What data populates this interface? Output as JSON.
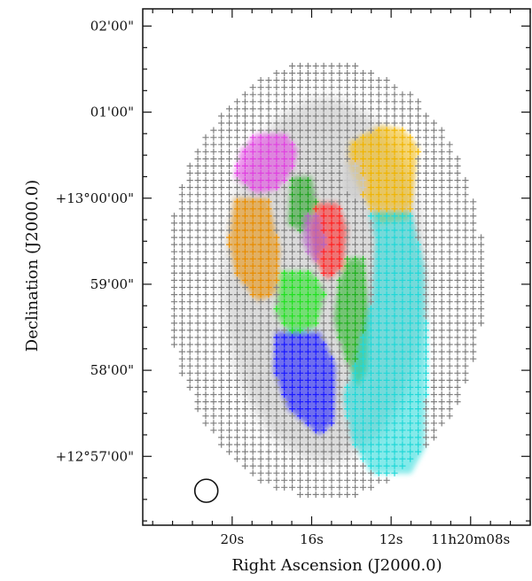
{
  "chart_data": {
    "type": "scatter",
    "xlabel": "Right Ascension (J2000.0)",
    "ylabel": "Declination (J2000.0)",
    "x_ticks": [
      {
        "value": 20,
        "label": "20s"
      },
      {
        "value": 16,
        "label": "16s"
      },
      {
        "value": 12,
        "label": "12s"
      },
      {
        "value": 8,
        "label": "11h20m08s"
      }
    ],
    "y_ticks": [
      {
        "value": 2,
        "label": "02'00\""
      },
      {
        "value": 1,
        "label": "01'00\""
      },
      {
        "value": 0,
        "label": "+13°00'00\""
      },
      {
        "value": -1,
        "label": "59'00\""
      },
      {
        "value": -2,
        "label": "58'00\""
      },
      {
        "value": -3,
        "label": "+12°57'00\""
      }
    ],
    "xlim": [
      24.5,
      5.0
    ],
    "ylim": [
      -3.8,
      2.2
    ],
    "grid": false,
    "beam_marker": {
      "ra_s": 21.3,
      "dec_arcmin": -3.4
    },
    "background_grid": {
      "color": "#808080",
      "ra_step_s": 0.396,
      "dec_step_arcmin": 0.083
    },
    "series": [
      {
        "color": "#e040e0",
        "polygon": [
          [
            18.8,
            0.75
          ],
          [
            17.3,
            0.75
          ],
          [
            16.7,
            0.55
          ],
          [
            17.0,
            0.3
          ],
          [
            17.8,
            0.1
          ],
          [
            18.8,
            0.05
          ],
          [
            19.9,
            0.25
          ],
          [
            19.6,
            0.55
          ]
        ]
      },
      {
        "color": "#f0b400",
        "polygon": [
          [
            14.1,
            0.65
          ],
          [
            12.5,
            0.85
          ],
          [
            11.4,
            0.8
          ],
          [
            10.6,
            0.6
          ],
          [
            10.8,
            0.2
          ],
          [
            11.1,
            -0.25
          ],
          [
            12.6,
            -0.3
          ],
          [
            13.6,
            0.1
          ],
          [
            14.2,
            0.4
          ]
        ]
      },
      {
        "color": "#c8c8c8",
        "polygon": [
          [
            14.3,
            0.45
          ],
          [
            13.5,
            0.4
          ],
          [
            13.3,
            0.1
          ],
          [
            13.7,
            -0.05
          ],
          [
            14.4,
            0.1
          ]
        ]
      },
      {
        "color": "#e88c00",
        "polygon": [
          [
            19.9,
            0.0
          ],
          [
            18.2,
            0.0
          ],
          [
            17.6,
            -0.6
          ],
          [
            17.8,
            -1.1
          ],
          [
            18.7,
            -1.2
          ],
          [
            19.8,
            -0.9
          ],
          [
            20.2,
            -0.5
          ]
        ]
      },
      {
        "color": "#20a020",
        "polygon": [
          [
            17.0,
            0.25
          ],
          [
            16.0,
            0.25
          ],
          [
            15.7,
            -0.1
          ],
          [
            16.4,
            -0.4
          ],
          [
            17.2,
            -0.3
          ]
        ]
      },
      {
        "color": "#ff2020",
        "polygon": [
          [
            15.7,
            -0.05
          ],
          [
            14.7,
            -0.05
          ],
          [
            14.2,
            -0.35
          ],
          [
            14.4,
            -0.8
          ],
          [
            15.2,
            -0.95
          ],
          [
            15.9,
            -0.7
          ],
          [
            16.1,
            -0.35
          ]
        ]
      },
      {
        "color": "#20e020",
        "polygon": [
          [
            17.6,
            -0.85
          ],
          [
            16.0,
            -0.85
          ],
          [
            15.3,
            -1.1
          ],
          [
            15.8,
            -1.5
          ],
          [
            17.0,
            -1.6
          ],
          [
            17.8,
            -1.35
          ]
        ]
      },
      {
        "color": "#20b020",
        "polygon": [
          [
            14.2,
            -0.7
          ],
          [
            13.4,
            -0.7
          ],
          [
            13.1,
            -1.3
          ],
          [
            13.2,
            -2.0
          ],
          [
            13.7,
            -2.2
          ],
          [
            14.4,
            -1.8
          ],
          [
            14.9,
            -1.4
          ],
          [
            14.6,
            -0.95
          ]
        ]
      },
      {
        "color": "#b060c0",
        "polygon": [
          [
            16.4,
            -0.2
          ],
          [
            15.6,
            -0.2
          ],
          [
            15.3,
            -0.55
          ],
          [
            15.9,
            -0.75
          ],
          [
            16.5,
            -0.5
          ]
        ]
      },
      {
        "color": "#1a1aff",
        "polygon": [
          [
            17.8,
            -1.55
          ],
          [
            15.6,
            -1.55
          ],
          [
            14.8,
            -1.95
          ],
          [
            14.9,
            -2.6
          ],
          [
            15.6,
            -2.75
          ],
          [
            17.2,
            -2.45
          ],
          [
            17.9,
            -2.0
          ]
        ]
      },
      {
        "color": "#20d8d8",
        "polygon": [
          [
            13.1,
            -0.15
          ],
          [
            11.0,
            -0.15
          ],
          [
            10.3,
            -0.8
          ],
          [
            10.2,
            -1.9
          ],
          [
            10.3,
            -2.9
          ],
          [
            11.0,
            -3.2
          ],
          [
            13.0,
            -3.2
          ],
          [
            14.0,
            -2.8
          ],
          [
            14.4,
            -2.3
          ],
          [
            13.9,
            -2.0
          ],
          [
            13.0,
            -1.2
          ],
          [
            12.8,
            -0.5
          ]
        ]
      }
    ]
  }
}
